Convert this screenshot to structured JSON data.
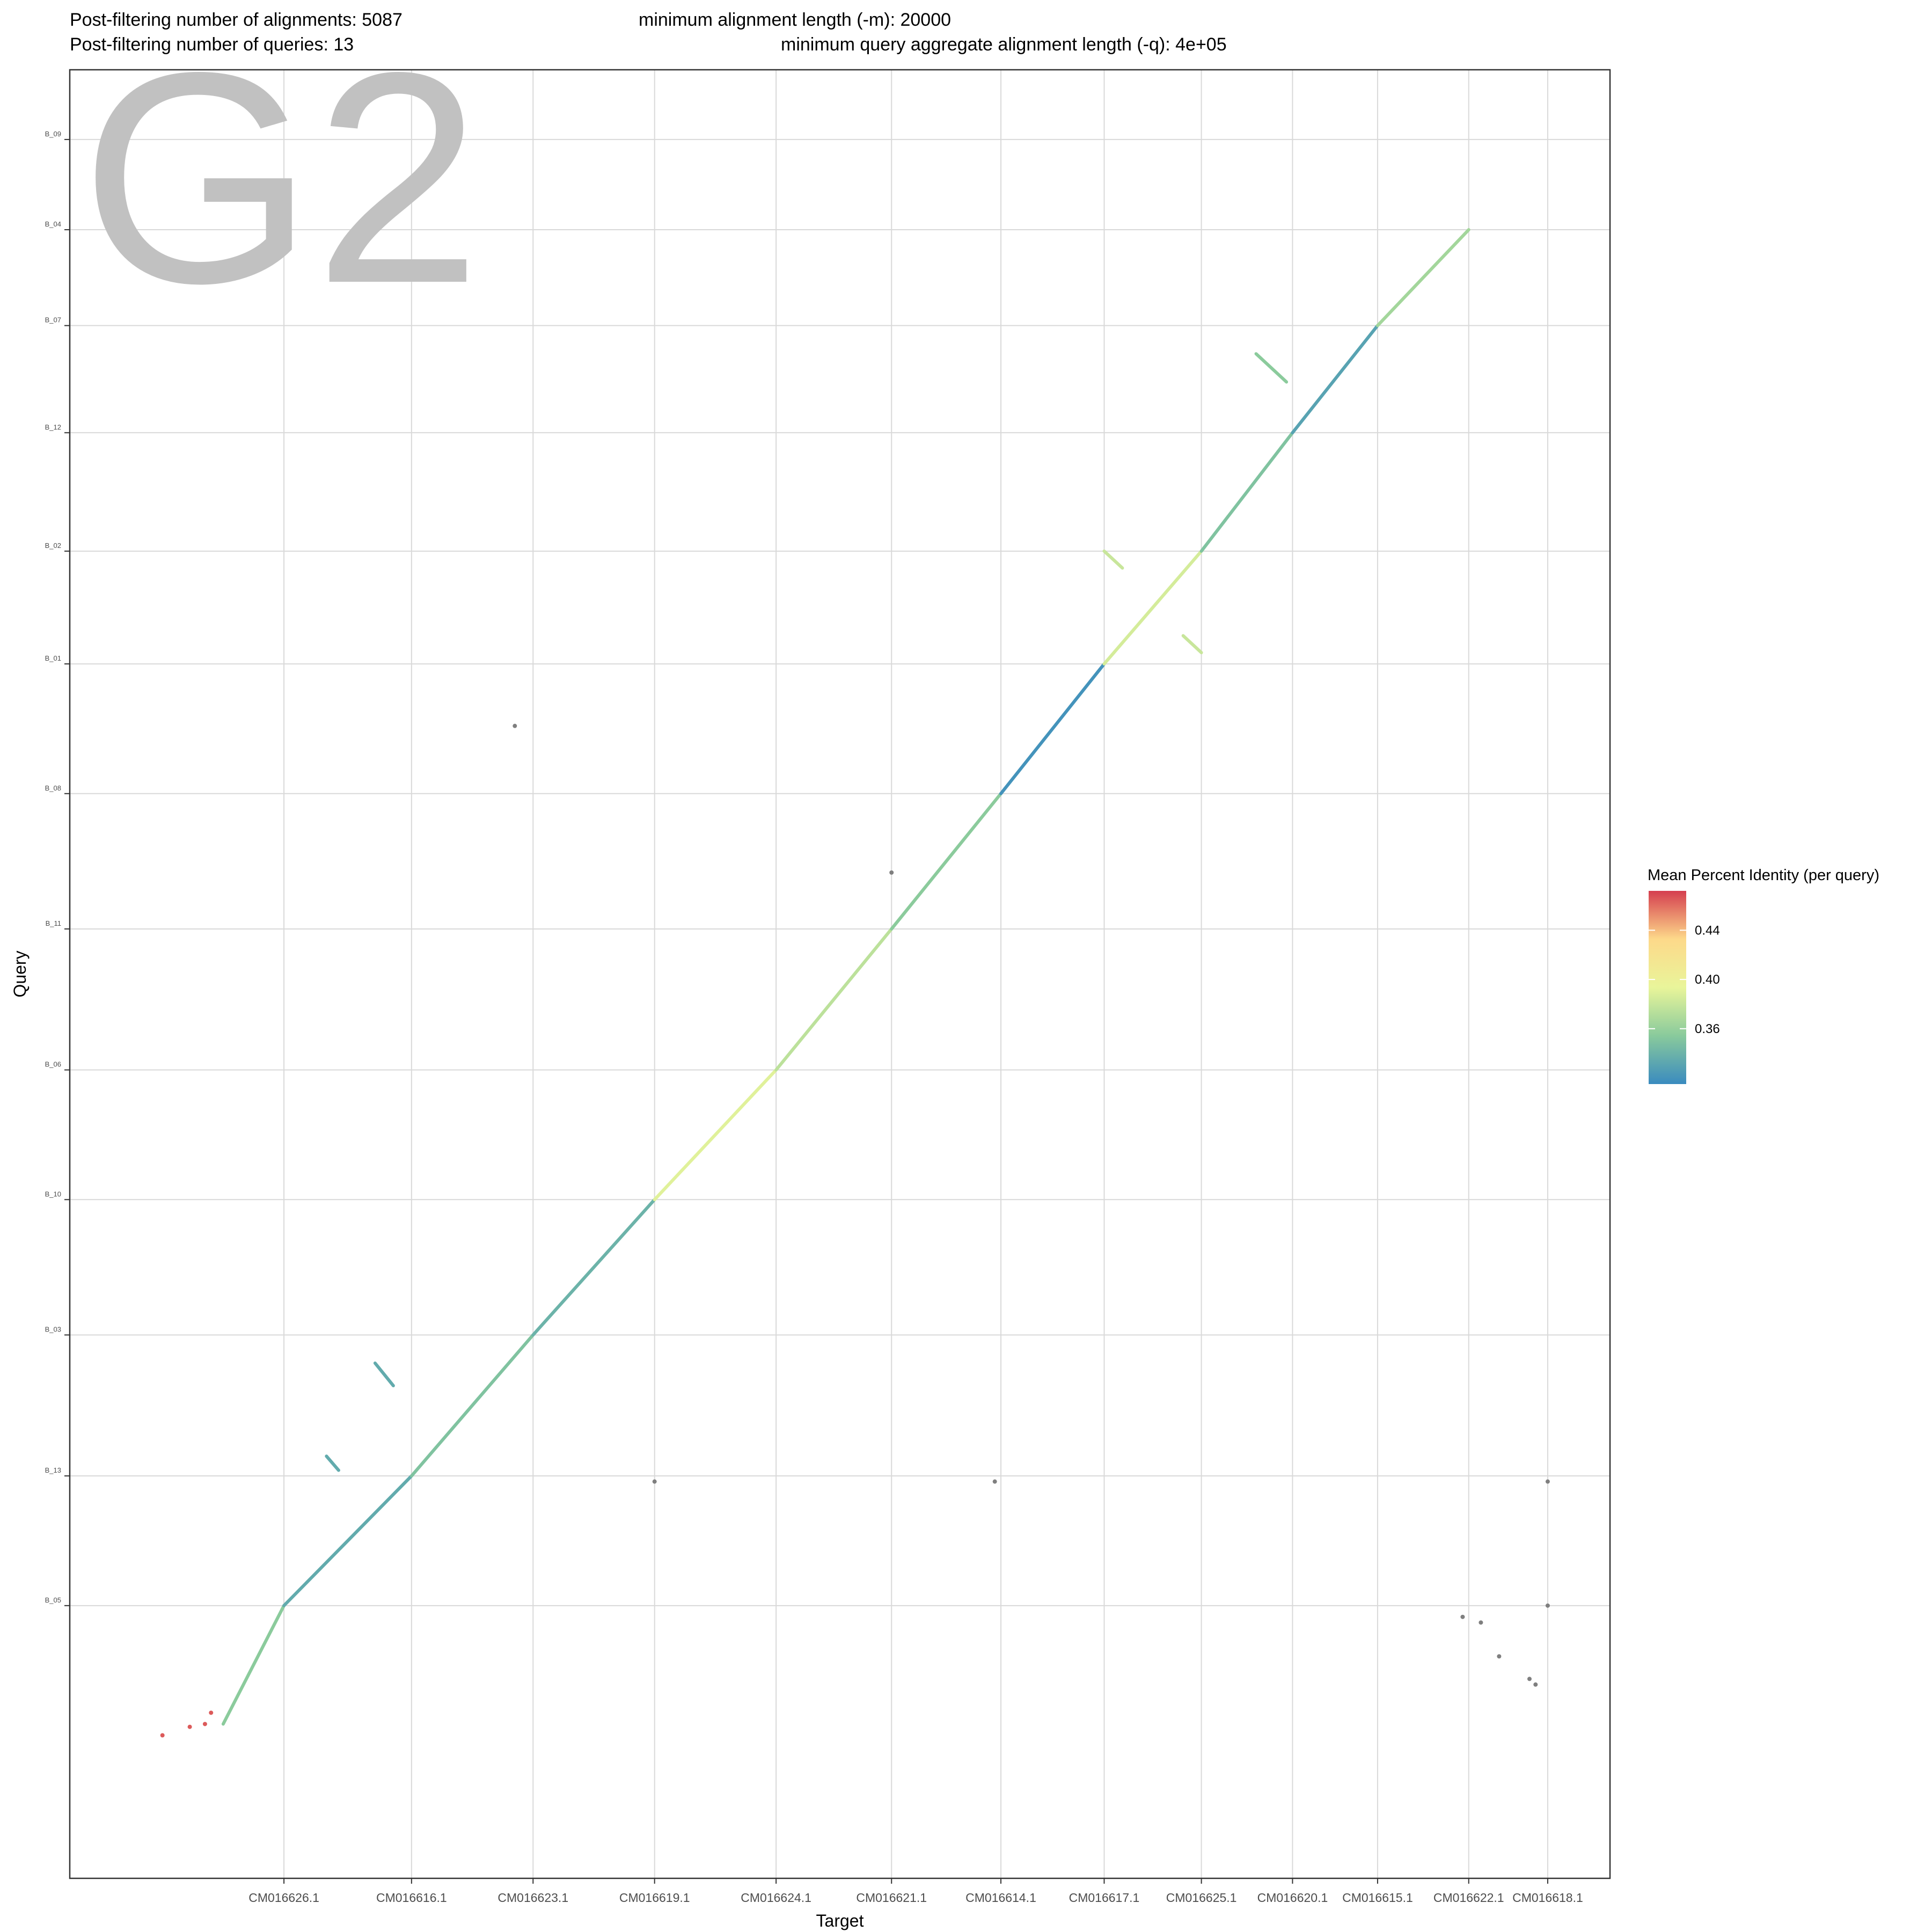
{
  "header": {
    "line1_left": "Post-filtering number of alignments: 5087",
    "line1_right": "minimum alignment length (-m): 20000",
    "line2_left": "Post-filtering number of queries: 13",
    "line2_right": "minimum query aggregate alignment length (-q): 4e+05"
  },
  "watermark": "G2",
  "colors": {
    "point_default": "#7f7f7f",
    "panel_border": "#333333",
    "grid": "#d9d9d9"
  },
  "chart_data": {
    "type": "scatter",
    "xlabel": "Target",
    "ylabel": "Query",
    "grid": true,
    "legend_position": "right",
    "x_ticks": [
      "CM016626.1",
      "CM016616.1",
      "CM016623.1",
      "CM016619.1",
      "CM016624.1",
      "CM016621.1",
      "CM016614.1",
      "CM016617.1",
      "CM016625.1",
      "CM016620.1",
      "CM016615.1",
      "CM016622.1",
      "CM016618.1"
    ],
    "y_ticks": [
      "B_05",
      "B_13",
      "B_03",
      "B_10",
      "B_06",
      "B_11",
      "B_08",
      "B_01",
      "B_02",
      "B_12",
      "B_07",
      "B_04",
      "B_09"
    ],
    "x_boundaries": [
      0.25,
      0.21,
      0.2,
      0.2,
      0.2,
      0.19,
      0.18,
      0.17,
      0.16,
      0.15,
      0.14,
      0.15,
      0.13
    ],
    "y_boundaries": [
      0.21,
      0.23,
      0.25,
      0.24,
      0.23,
      0.25,
      0.24,
      0.23,
      0.2,
      0.21,
      0.19,
      0.17,
      0.16
    ],
    "legend": {
      "title": "Mean Percent Identity (per query)",
      "ticks": [
        0.36,
        0.4,
        0.44
      ],
      "min": 0.315,
      "max": 0.472,
      "gradient": [
        "#3a8bbf",
        "#89ca9c",
        "#e9f59a",
        "#fdd98a",
        "#d53e4f"
      ]
    },
    "main_alignments": [
      {
        "name": "B_05",
        "identity": 0.355,
        "x0": 0.15,
        "x1": 0.25,
        "y0": 0.0,
        "y1": 0.21
      },
      {
        "name": "B_13",
        "identity": 0.335,
        "x0": 0.25,
        "x1": 0.46,
        "y0": 0.21,
        "y1": 0.44
      },
      {
        "name": "B_03",
        "identity": 0.35,
        "x0": 0.46,
        "x1": 0.66,
        "y0": 0.44,
        "y1": 0.69
      },
      {
        "name": "B_10",
        "identity": 0.34,
        "x0": 0.66,
        "x1": 0.86,
        "y0": 0.69,
        "y1": 0.93
      },
      {
        "name": "B_06",
        "identity": 0.39,
        "x0": 0.86,
        "x1": 1.06,
        "y0": 0.93,
        "y1": 1.16
      },
      {
        "name": "B_11",
        "identity": 0.375,
        "x0": 1.06,
        "x1": 1.25,
        "y0": 1.16,
        "y1": 1.41
      },
      {
        "name": "B_08",
        "identity": 0.355,
        "x0": 1.25,
        "x1": 1.43,
        "y0": 1.41,
        "y1": 1.65
      },
      {
        "name": "B_01",
        "identity": 0.32,
        "x0": 1.43,
        "x1": 1.6,
        "y0": 1.65,
        "y1": 1.88
      },
      {
        "name": "B_02",
        "identity": 0.385,
        "x0": 1.6,
        "x1": 1.76,
        "y0": 1.88,
        "y1": 2.08
      },
      {
        "name": "B_12",
        "identity": 0.35,
        "x0": 1.76,
        "x1": 1.91,
        "y0": 2.08,
        "y1": 2.29
      },
      {
        "name": "B_07",
        "identity": 0.33,
        "x0": 1.91,
        "x1": 2.05,
        "y0": 2.29,
        "y1": 2.48
      },
      {
        "name": "B_04",
        "identity": 0.365,
        "x0": 2.05,
        "x1": 2.2,
        "y0": 2.48,
        "y1": 2.65
      }
    ],
    "inversions": [
      {
        "identity": 0.38,
        "x0": 1.6,
        "x1": 1.63,
        "y0": 2.08,
        "y1": 2.05
      },
      {
        "identity": 0.38,
        "x0": 1.73,
        "x1": 1.76,
        "y0": 1.93,
        "y1": 1.9
      },
      {
        "identity": 0.355,
        "x0": 1.85,
        "x1": 1.9,
        "y0": 2.43,
        "y1": 2.38
      },
      {
        "identity": 0.335,
        "x0": 0.4,
        "x1": 0.43,
        "y0": 0.64,
        "y1": 0.6
      },
      {
        "identity": 0.335,
        "x0": 0.32,
        "x1": 0.34,
        "y0": 0.475,
        "y1": 0.45
      }
    ],
    "extra_points": [
      {
        "identity": 0.465,
        "x": 0.12,
        "y": 0.0
      },
      {
        "identity": 0.465,
        "x": 0.13,
        "y": 0.02
      },
      {
        "identity": 0.465,
        "x": 0.05,
        "y": -0.02
      },
      {
        "identity": 0.465,
        "x": 0.095,
        "y": -0.005
      },
      {
        "x": 0.63,
        "y": 1.77
      },
      {
        "x": 1.25,
        "y": 1.51
      },
      {
        "x": 0.86,
        "y": 0.43
      },
      {
        "x": 1.42,
        "y": 0.43
      },
      {
        "x": 2.33,
        "y": 0.43
      },
      {
        "x": 2.33,
        "y": 0.21
      },
      {
        "x": 2.19,
        "y": 0.19
      },
      {
        "x": 2.22,
        "y": 0.18
      },
      {
        "x": 2.25,
        "y": 0.12
      },
      {
        "x": 2.3,
        "y": 0.08
      },
      {
        "x": 2.31,
        "y": 0.07
      }
    ]
  }
}
